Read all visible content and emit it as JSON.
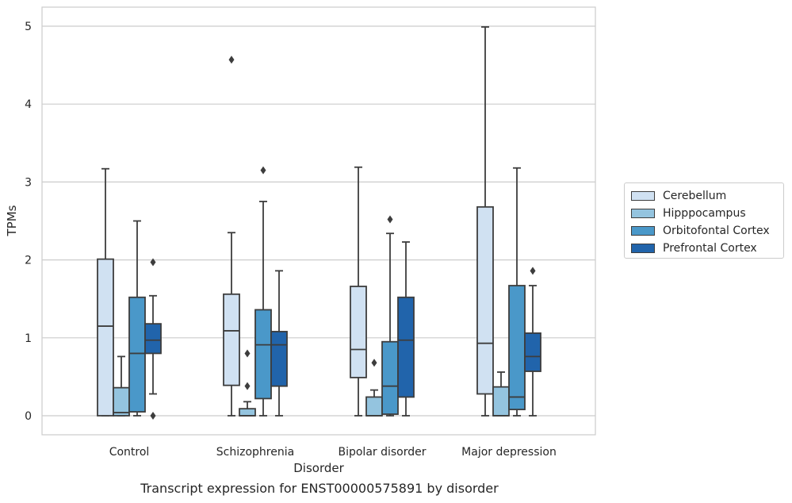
{
  "chart_data": {
    "type": "box",
    "title": "",
    "xlabel": "Disorder",
    "ylabel": "TPMs",
    "ylim": [
      -0.25,
      5.25
    ],
    "yticks": [
      0,
      1,
      2,
      3,
      4,
      5
    ],
    "categories": [
      "Control",
      "Schizophrenia",
      "Bipolar disorder",
      "Major depression"
    ],
    "grid": true,
    "legend_position": "right",
    "series": [
      {
        "name": "Cerebellum",
        "color": "#d0e1f2",
        "boxes": [
          {
            "min": 0,
            "q1": 0,
            "median": 1.15,
            "q3": 2.01,
            "max": 3.17,
            "outliers": []
          },
          {
            "min": 0,
            "q1": 0.39,
            "median": 1.09,
            "q3": 1.56,
            "max": 2.35,
            "outliers": [
              4.57
            ]
          },
          {
            "min": 0,
            "q1": 0.49,
            "median": 0.85,
            "q3": 1.66,
            "max": 3.19,
            "outliers": []
          },
          {
            "min": 0,
            "q1": 0.28,
            "median": 0.93,
            "q3": 2.68,
            "max": 4.99,
            "outliers": []
          }
        ]
      },
      {
        "name": "Hipppocampus",
        "color": "#94c4df",
        "boxes": [
          {
            "min": 0,
            "q1": 0,
            "median": 0.04,
            "q3": 0.36,
            "max": 0.76,
            "outliers": []
          },
          {
            "min": 0,
            "q1": 0,
            "median": 0.0,
            "q3": 0.09,
            "max": 0.18,
            "outliers": [
              0.38,
              0.8
            ]
          },
          {
            "min": 0,
            "q1": 0,
            "median": 0.0,
            "q3": 0.24,
            "max": 0.33,
            "outliers": [
              0.68
            ]
          },
          {
            "min": 0,
            "q1": 0,
            "median": 0.0,
            "q3": 0.37,
            "max": 0.56,
            "outliers": []
          }
        ]
      },
      {
        "name": "Orbitofontal Cortex",
        "color": "#4a98c9",
        "boxes": [
          {
            "min": 0,
            "q1": 0.05,
            "median": 0.8,
            "q3": 1.52,
            "max": 2.5,
            "outliers": []
          },
          {
            "min": 0,
            "q1": 0.22,
            "median": 0.91,
            "q3": 1.36,
            "max": 2.75,
            "outliers": [
              3.15
            ]
          },
          {
            "min": 0,
            "q1": 0.02,
            "median": 0.38,
            "q3": 0.95,
            "max": 2.34,
            "outliers": [
              2.52
            ]
          },
          {
            "min": 0,
            "q1": 0.08,
            "median": 0.24,
            "q3": 1.67,
            "max": 3.18,
            "outliers": []
          }
        ]
      },
      {
        "name": "Prefrontal Cortex",
        "color": "#2164ab",
        "boxes": [
          {
            "min": 0.28,
            "q1": 0.8,
            "median": 0.97,
            "q3": 1.18,
            "max": 1.54,
            "outliers": [
              1.97,
              0.0
            ]
          },
          {
            "min": 0,
            "q1": 0.38,
            "median": 0.91,
            "q3": 1.08,
            "max": 1.86,
            "outliers": []
          },
          {
            "min": 0,
            "q1": 0.24,
            "median": 0.97,
            "q3": 1.52,
            "max": 2.23,
            "outliers": []
          },
          {
            "min": 0,
            "q1": 0.57,
            "median": 0.76,
            "q3": 1.06,
            "max": 1.67,
            "outliers": [
              1.86
            ]
          }
        ]
      }
    ]
  },
  "footer": "Transcript expression for ENST00000575891 by disorder",
  "legend": {
    "items": [
      {
        "label": "Cerebellum",
        "color": "#d0e1f2"
      },
      {
        "label": "Hipppocampus",
        "color": "#94c4df"
      },
      {
        "label": "Orbitofontal Cortex",
        "color": "#4a98c9"
      },
      {
        "label": "Prefrontal Cortex",
        "color": "#2164ab"
      }
    ]
  }
}
